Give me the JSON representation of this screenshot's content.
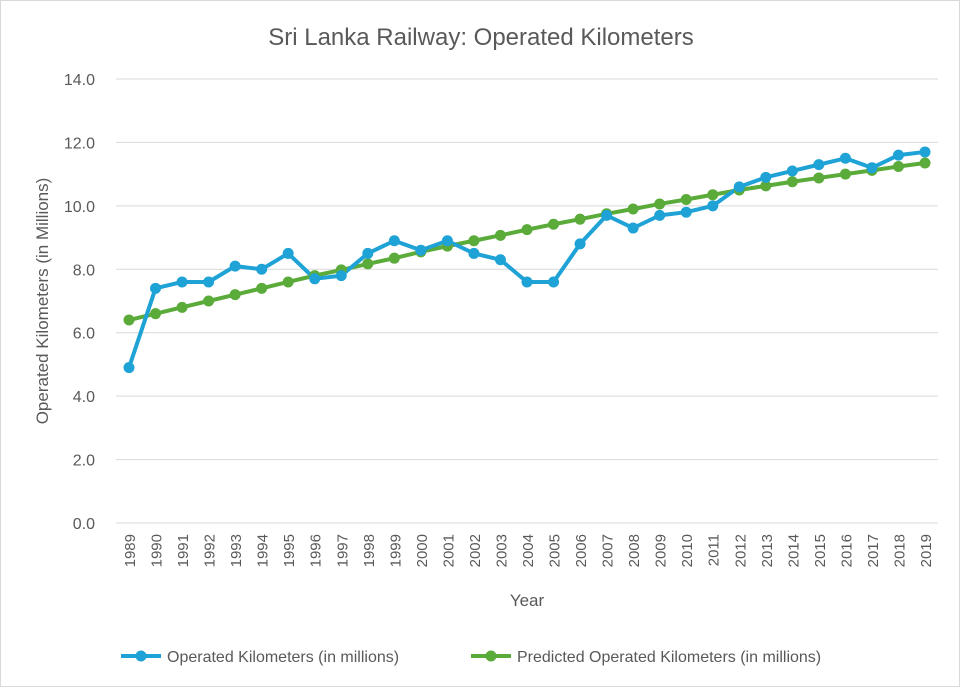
{
  "chart_data": {
    "type": "line",
    "title": "Sri Lanka Railway: Operated Kilometers",
    "xlabel": "Year",
    "ylabel": "Operated Kilometers (in Millions)",
    "ylim": [
      0,
      14
    ],
    "yticks": [
      "0.0",
      "2.0",
      "4.0",
      "6.0",
      "8.0",
      "10.0",
      "12.0",
      "14.0"
    ],
    "grid": true,
    "legend": "bottom",
    "categories": [
      "1989",
      "1990",
      "1991",
      "1992",
      "1993",
      "1994",
      "1995",
      "1996",
      "1997",
      "1998",
      "1999",
      "2000",
      "2001",
      "2002",
      "2003",
      "2004",
      "2005",
      "2006",
      "2007",
      "2008",
      "2009",
      "2010",
      "2011",
      "2012",
      "2013",
      "2014",
      "2015",
      "2016",
      "2017",
      "2018",
      "2019"
    ],
    "series": [
      {
        "name": "Operated Kilometers (in millions)",
        "color": "#1fa2d6",
        "values": [
          4.9,
          7.4,
          7.6,
          7.6,
          8.1,
          8.0,
          8.5,
          7.7,
          7.8,
          8.5,
          8.9,
          8.6,
          8.9,
          8.5,
          8.3,
          7.6,
          7.6,
          8.8,
          9.7,
          9.3,
          9.7,
          9.8,
          10.0,
          10.6,
          10.9,
          11.1,
          11.3,
          11.5,
          11.2,
          11.6,
          11.7
        ]
      },
      {
        "name": "Predicted Operated Kilometers (in millions)",
        "color": "#5aab3a",
        "values": [
          6.4,
          6.6,
          6.8,
          7.0,
          7.2,
          7.4,
          7.6,
          7.8,
          7.98,
          8.17,
          8.35,
          8.55,
          8.73,
          8.9,
          9.07,
          9.25,
          9.42,
          9.58,
          9.75,
          9.9,
          10.06,
          10.2,
          10.35,
          10.5,
          10.63,
          10.76,
          10.88,
          11.0,
          11.12,
          11.24,
          11.35
        ]
      }
    ]
  }
}
